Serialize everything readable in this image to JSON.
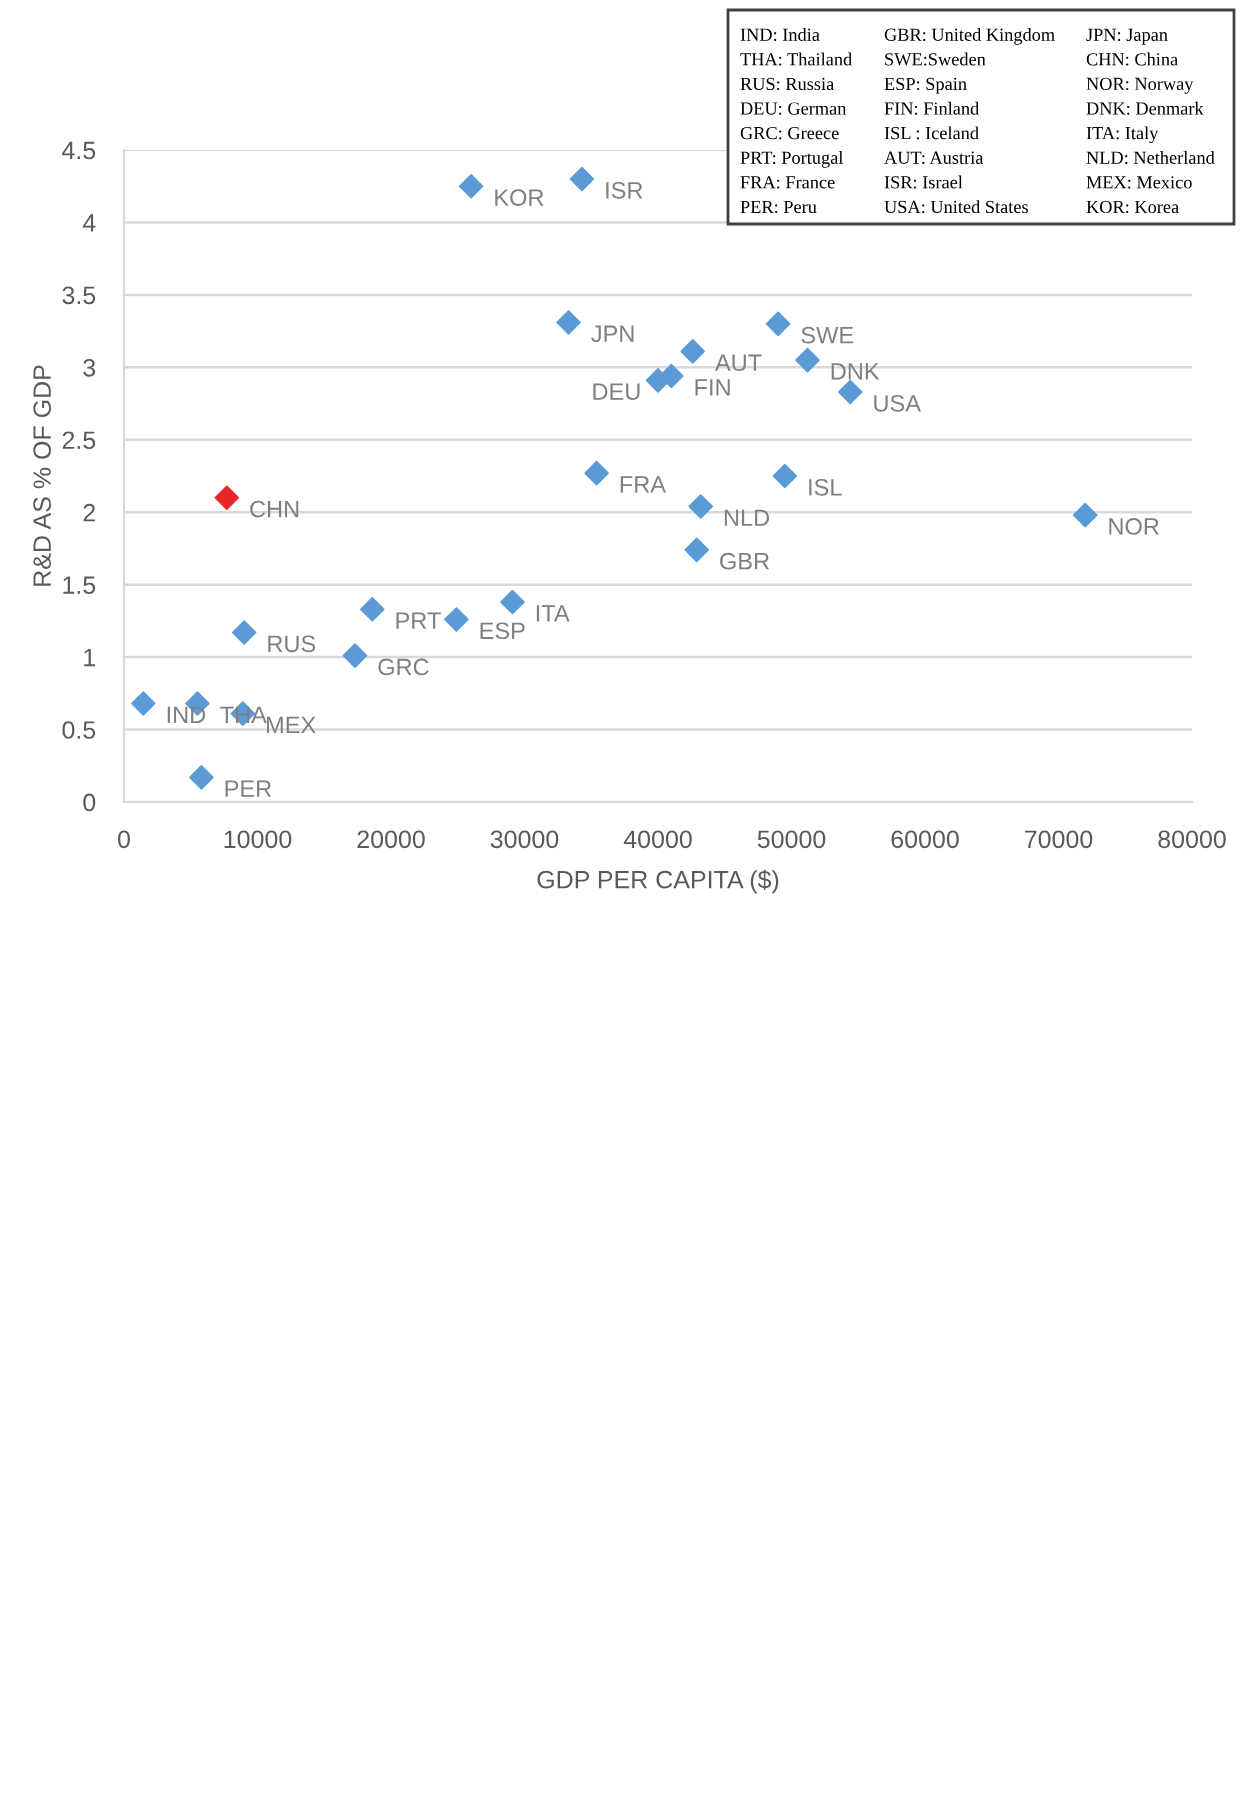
{
  "chart_data": {
    "type": "scatter",
    "xlabel": "GDP PER CAPITA ($)",
    "ylabel": "R&D AS % OF GDP",
    "xlim": [
      0,
      80000
    ],
    "xticks": [
      0,
      10000,
      20000,
      30000,
      40000,
      50000,
      60000,
      70000,
      80000
    ],
    "ylim": [
      0,
      4.5
    ],
    "yticks": [
      0,
      0.5,
      1,
      1.5,
      2,
      2.5,
      3,
      3.5,
      4,
      4.5
    ],
    "grid": "y",
    "marker": "diamond",
    "x": [
      26000,
      34300,
      33300,
      49000,
      42600,
      40000,
      41000,
      51200,
      54400,
      35400,
      49500,
      43200,
      42900,
      72000,
      7700,
      29100,
      18600,
      24900,
      9000,
      17300,
      1450,
      5500,
      8900,
      5800
    ],
    "values": [
      4.25,
      4.3,
      3.31,
      3.3,
      3.11,
      2.91,
      2.94,
      3.05,
      2.83,
      2.27,
      2.25,
      2.04,
      1.74,
      1.98,
      2.1,
      1.38,
      1.33,
      1.26,
      1.17,
      1.01,
      0.68,
      0.68,
      0.61,
      0.17
    ],
    "colors": [
      "#5b9bd5",
      "#5b9bd5",
      "#5b9bd5",
      "#5b9bd5",
      "#5b9bd5",
      "#5b9bd5",
      "#5b9bd5",
      "#5b9bd5",
      "#5b9bd5",
      "#5b9bd5",
      "#5b9bd5",
      "#5b9bd5",
      "#5b9bd5",
      "#5b9bd5",
      "#e8262a",
      "#5b9bd5",
      "#5b9bd5",
      "#5b9bd5",
      "#5b9bd5",
      "#5b9bd5",
      "#5b9bd5",
      "#5b9bd5",
      "#5b9bd5",
      "#5b9bd5"
    ],
    "annotations": [
      {
        "text": "KOR",
        "x": 26000,
        "y": 4.25
      },
      {
        "text": "ISR",
        "x": 34300,
        "y": 4.3
      },
      {
        "text": "JPN",
        "x": 33300,
        "y": 3.31
      },
      {
        "text": "SWE",
        "x": 49000,
        "y": 3.3
      },
      {
        "text": "AUT",
        "x": 42600,
        "y": 3.11
      },
      {
        "text": "DEU",
        "x": 40000,
        "y": 2.91
      },
      {
        "text": "FIN",
        "x": 41000,
        "y": 2.94
      },
      {
        "text": "DNK",
        "x": 51200,
        "y": 3.05
      },
      {
        "text": "USA",
        "x": 54400,
        "y": 2.83
      },
      {
        "text": "FRA",
        "x": 35400,
        "y": 2.27
      },
      {
        "text": "ISL",
        "x": 49500,
        "y": 2.25
      },
      {
        "text": "NLD",
        "x": 43200,
        "y": 2.04
      },
      {
        "text": "GBR",
        "x": 42900,
        "y": 1.74
      },
      {
        "text": "NOR",
        "x": 72000,
        "y": 1.98
      },
      {
        "text": "CHN",
        "x": 7700,
        "y": 2.1
      },
      {
        "text": "ITA",
        "x": 29100,
        "y": 1.38
      },
      {
        "text": "PRT",
        "x": 18600,
        "y": 1.33
      },
      {
        "text": "ESP",
        "x": 24900,
        "y": 1.26
      },
      {
        "text": "RUS",
        "x": 9000,
        "y": 1.17
      },
      {
        "text": "GRC",
        "x": 17300,
        "y": 1.01
      },
      {
        "text": "IND",
        "x": 1450,
        "y": 0.68
      },
      {
        "text": "THA",
        "x": 5500,
        "y": 0.68
      },
      {
        "text": "MEX",
        "x": 8900,
        "y": 0.61
      },
      {
        "text": "PER",
        "x": 5800,
        "y": 0.17
      },
      "IND: India",
      "GBR: United Kingdom",
      "JPN: Japan",
      "THA: Thailand",
      "SWE:Sweden",
      "CHN: China",
      "RUS: Russia",
      "ESP: Spain",
      "NOR: Norway",
      "DEU: German",
      "FIN: Finland",
      "DNK: Denmark",
      "GRC: Greece",
      "ISL : Iceland",
      "ITA: Italy",
      "PRT: Portugal",
      "AUT: Austria",
      "NLD: Netherland",
      "FRA: France",
      "ISR: Israel",
      "MEX: Mexico",
      "PER: Peru",
      "USA: United States",
      "KOR: Korea"
    ]
  }
}
